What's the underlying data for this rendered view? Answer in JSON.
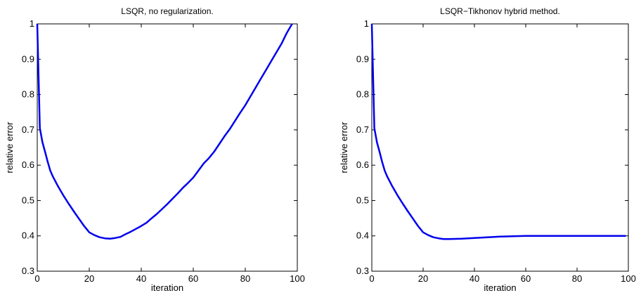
{
  "chart_data": [
    {
      "type": "line",
      "title": "LSQR, no regularization.",
      "xlabel": "iteration",
      "ylabel": "relative error",
      "xlim": [
        0,
        100
      ],
      "ylim": [
        0.3,
        1
      ],
      "xticks": [
        0,
        20,
        40,
        60,
        80,
        100
      ],
      "yticks": [
        0.3,
        0.4,
        0.5,
        0.6,
        0.7,
        0.8,
        0.9,
        1
      ],
      "grid": false,
      "series": [
        {
          "color": "#0000ee",
          "x": [
            0,
            1,
            2,
            3,
            4,
            5,
            6,
            8,
            10,
            12,
            14,
            16,
            18,
            20,
            22,
            24,
            26,
            28,
            30,
            32,
            34,
            36,
            38,
            40,
            42,
            44,
            46,
            48,
            50,
            52,
            54,
            56,
            58,
            60,
            62,
            64,
            66,
            68,
            70,
            72,
            74,
            76,
            78,
            80,
            82,
            84,
            86,
            88,
            90,
            92,
            94,
            96,
            98
          ],
          "y": [
            1.0,
            0.705,
            0.665,
            0.638,
            0.61,
            0.585,
            0.568,
            0.54,
            0.515,
            0.492,
            0.47,
            0.449,
            0.428,
            0.41,
            0.402,
            0.396,
            0.393,
            0.392,
            0.394,
            0.397,
            0.405,
            0.412,
            0.42,
            0.428,
            0.437,
            0.45,
            0.462,
            0.476,
            0.49,
            0.505,
            0.52,
            0.536,
            0.55,
            0.565,
            0.585,
            0.605,
            0.62,
            0.638,
            0.66,
            0.682,
            0.702,
            0.725,
            0.748,
            0.77,
            0.795,
            0.82,
            0.845,
            0.87,
            0.895,
            0.92,
            0.945,
            0.975,
            1.0
          ]
        }
      ]
    },
    {
      "type": "line",
      "title": "LSQR−Tikhonov hybrid method.",
      "xlabel": "iteration",
      "ylabel": "relative error",
      "xlim": [
        0,
        100
      ],
      "ylim": [
        0.3,
        1
      ],
      "xticks": [
        0,
        20,
        40,
        60,
        80,
        100
      ],
      "yticks": [
        0.3,
        0.4,
        0.5,
        0.6,
        0.7,
        0.8,
        0.9,
        1
      ],
      "grid": false,
      "series": [
        {
          "color": "#0000ee",
          "x": [
            0,
            1,
            2,
            3,
            4,
            5,
            6,
            8,
            10,
            12,
            14,
            16,
            18,
            20,
            22,
            24,
            26,
            28,
            30,
            35,
            40,
            45,
            50,
            55,
            60,
            65,
            70,
            75,
            80,
            85,
            90,
            95,
            99
          ],
          "y": [
            1.0,
            0.705,
            0.665,
            0.638,
            0.61,
            0.585,
            0.568,
            0.54,
            0.515,
            0.492,
            0.47,
            0.449,
            0.428,
            0.41,
            0.402,
            0.396,
            0.393,
            0.391,
            0.391,
            0.392,
            0.394,
            0.396,
            0.398,
            0.399,
            0.4,
            0.4,
            0.4,
            0.4,
            0.4,
            0.4,
            0.4,
            0.4,
            0.4
          ]
        }
      ]
    }
  ]
}
